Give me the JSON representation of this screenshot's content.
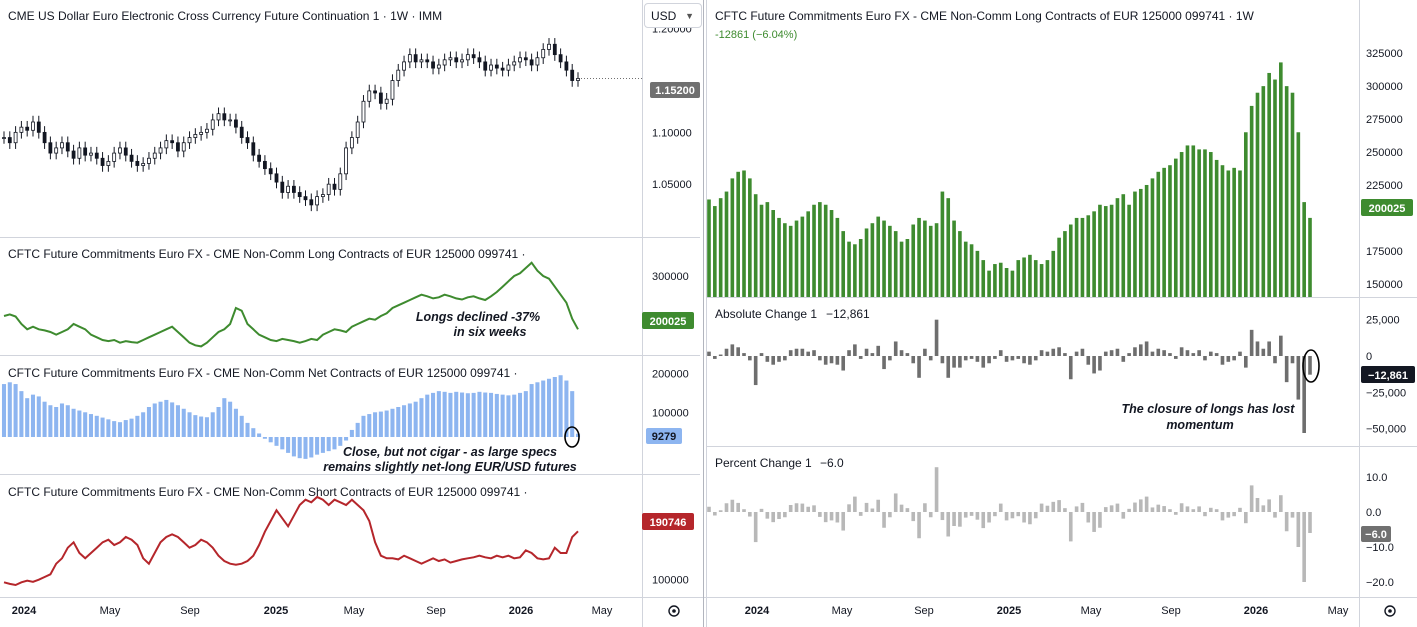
{
  "currency_select": {
    "value": "USD",
    "chevron_icon": "chevron-down-icon"
  },
  "left_panel": {
    "price": {
      "title": "CME US Dollar Euro Electronic Cross Currency Future Continuation 1 · 1W · IMM",
      "last_label": "1.15200",
      "axis_ticks": [
        "1.20000",
        "1.15000",
        "1.10000",
        "1.05000"
      ],
      "badge_color": "#707070"
    },
    "longs": {
      "title": "CFTC Future Commitments Euro FX - CME Non-Comm Long Contracts of EUR 125000 099741 ·",
      "last_label": "200025",
      "axis_ticks": [
        "300000"
      ],
      "color": "#3e8b2f",
      "annotation_line1": "Longs declined -37%",
      "annotation_line2": "in six weeks"
    },
    "net": {
      "title": "CFTC Future Commitments Euro FX - CME Non-Comm Net Contracts of EUR 125000 099741 ·",
      "last_label": "9279",
      "axis_ticks": [
        "200000",
        "100000"
      ],
      "color": "#8db5f0",
      "annotation_line1": "Close, but not cigar - as large specs",
      "annotation_line2": "remains slightly net-long EUR/USD futures"
    },
    "shorts": {
      "title": "CFTC Future Commitments Euro FX - CME Non-Comm Short Contracts of EUR 125000 099741 ·",
      "last_label": "190746",
      "axis_ticks": [
        "200000",
        "100000"
      ],
      "color": "#b5262b"
    },
    "time_axis": [
      "2024",
      "May",
      "Sep",
      "2025",
      "May",
      "Sep",
      "2026",
      "May"
    ],
    "settings_icon": "gear-icon"
  },
  "right_panel": {
    "longs": {
      "title": "CFTC Future Commitments Euro FX - CME Non-Comm Long Contracts of EUR 125000 099741 · 1W",
      "change": "-12861 (−6.04%)",
      "last_label": "200025",
      "axis_ticks": [
        "325000",
        "300000",
        "275000",
        "250000",
        "225000",
        "175000",
        "150000"
      ],
      "color": "#3e8b2f"
    },
    "abs_change": {
      "title": "Absolute Change 1",
      "value": "−12,861",
      "last_label": "−12,861",
      "axis_ticks": [
        "25,000",
        "0",
        "−25,000",
        "−50,000"
      ],
      "annotation_line1": "The closure of longs has lost",
      "annotation_line2": "momentum"
    },
    "pct_change": {
      "title": "Percent Change 1",
      "value": "−6.0",
      "last_label": "−6.0",
      "axis_ticks": [
        "10.0",
        "0.0",
        "−10.0",
        "−20.0"
      ]
    },
    "time_axis": [
      "2024",
      "May",
      "Sep",
      "2025",
      "May",
      "Sep",
      "2026",
      "May"
    ],
    "settings_icon": "gear-icon"
  },
  "chart_data": [
    {
      "type": "candlestick",
      "title": "CME US Dollar Euro Electronic Cross Currency Future Continuation 1 · 1W · IMM",
      "period": "2024 – 2026 (weekly)",
      "close": [
        1.095,
        1.09,
        1.1,
        1.105,
        1.102,
        1.11,
        1.1,
        1.09,
        1.08,
        1.085,
        1.09,
        1.082,
        1.075,
        1.085,
        1.078,
        1.08,
        1.075,
        1.068,
        1.072,
        1.08,
        1.085,
        1.078,
        1.072,
        1.068,
        1.07,
        1.075,
        1.08,
        1.085,
        1.092,
        1.09,
        1.082,
        1.09,
        1.095,
        1.098,
        1.1,
        1.103,
        1.112,
        1.118,
        1.112,
        1.112,
        1.105,
        1.095,
        1.09,
        1.078,
        1.072,
        1.065,
        1.06,
        1.052,
        1.042,
        1.048,
        1.042,
        1.038,
        1.035,
        1.03,
        1.038,
        1.04,
        1.05,
        1.045,
        1.06,
        1.085,
        1.095,
        1.11,
        1.13,
        1.14,
        1.138,
        1.128,
        1.132,
        1.15,
        1.16,
        1.168,
        1.175,
        1.168,
        1.17,
        1.168,
        1.162,
        1.165,
        1.17,
        1.172,
        1.168,
        1.17,
        1.175,
        1.172,
        1.168,
        1.16,
        1.165,
        1.162,
        1.16,
        1.165,
        1.168,
        1.172,
        1.17,
        1.165,
        1.172,
        1.18,
        1.185,
        1.175,
        1.168,
        1.16,
        1.15,
        1.152
      ],
      "ylim": [
        1.0,
        1.22
      ]
    },
    {
      "type": "line",
      "title": "CFTC Future Commitments Euro FX - CME Non-Comm Long Contracts of EUR 125000 099741",
      "values": [
        225000,
        228000,
        224000,
        210000,
        200000,
        205000,
        200000,
        198000,
        195000,
        190000,
        195000,
        200000,
        210000,
        205000,
        200000,
        190000,
        185000,
        180000,
        178000,
        180000,
        175000,
        178000,
        176000,
        175000,
        180000,
        185000,
        190000,
        195000,
        200000,
        205000,
        195000,
        185000,
        175000,
        170000,
        168000,
        175000,
        185000,
        195000,
        200000,
        210000,
        240000,
        235000,
        210000,
        200000,
        190000,
        185000,
        180000,
        178000,
        182000,
        180000,
        178000,
        175000,
        178000,
        182000,
        180000,
        190000,
        195000,
        200000,
        198000,
        195000,
        205000,
        210000,
        215000,
        220000,
        218000,
        225000,
        230000,
        240000,
        245000,
        250000,
        255000,
        260000,
        265000,
        262000,
        258000,
        260000,
        265000,
        262000,
        258000,
        256000,
        260000,
        262000,
        258000,
        255000,
        262000,
        270000,
        280000,
        290000,
        300000,
        305000,
        315000,
        325000,
        310000,
        300000,
        295000,
        280000,
        265000,
        250000,
        220000,
        200025
      ]
    },
    {
      "type": "bar",
      "title": "CFTC Future Commitments Euro FX - CME Non-Comm Net Contracts of EUR 125000 099741",
      "values": [
        150000,
        155000,
        150000,
        130000,
        110000,
        120000,
        115000,
        100000,
        90000,
        85000,
        95000,
        90000,
        80000,
        75000,
        70000,
        65000,
        60000,
        55000,
        50000,
        45000,
        42000,
        48000,
        52000,
        60000,
        70000,
        85000,
        95000,
        100000,
        105000,
        98000,
        90000,
        80000,
        70000,
        62000,
        58000,
        56000,
        70000,
        85000,
        110000,
        100000,
        80000,
        60000,
        40000,
        25000,
        10000,
        -5000,
        -15000,
        -25000,
        -35000,
        -45000,
        -55000,
        -60000,
        -62000,
        -58000,
        -50000,
        -45000,
        -40000,
        -35000,
        -25000,
        -10000,
        20000,
        40000,
        60000,
        65000,
        70000,
        72000,
        75000,
        80000,
        85000,
        90000,
        95000,
        100000,
        110000,
        120000,
        125000,
        130000,
        128000,
        125000,
        128000,
        126000,
        124000,
        125000,
        128000,
        126000,
        125000,
        122000,
        120000,
        118000,
        120000,
        125000,
        130000,
        150000,
        155000,
        160000,
        165000,
        170000,
        175000,
        160000,
        130000,
        9279
      ]
    },
    {
      "type": "line",
      "title": "CFTC Future Commitments Euro FX - CME Non-Comm Short Contracts of EUR 125000 099741",
      "values": [
        95000,
        92000,
        90000,
        95000,
        98000,
        96000,
        100000,
        105000,
        110000,
        130000,
        140000,
        160000,
        170000,
        150000,
        140000,
        150000,
        160000,
        170000,
        175000,
        165000,
        170000,
        180000,
        175000,
        165000,
        140000,
        130000,
        150000,
        170000,
        180000,
        185000,
        180000,
        170000,
        160000,
        165000,
        175000,
        170000,
        160000,
        145000,
        135000,
        130000,
        128000,
        130000,
        135000,
        145000,
        165000,
        190000,
        210000,
        230000,
        215000,
        200000,
        220000,
        240000,
        250000,
        245000,
        255000,
        250000,
        240000,
        250000,
        245000,
        240000,
        250000,
        240000,
        230000,
        210000,
        170000,
        145000,
        140000,
        140000,
        138000,
        145000,
        140000,
        135000,
        130000,
        135000,
        140000,
        135000,
        138000,
        132000,
        135000,
        138000,
        140000,
        142000,
        145000,
        142000,
        140000,
        145000,
        142000,
        145000,
        140000,
        142000,
        155000,
        150000,
        140000,
        138000,
        140000,
        160000,
        150000,
        150000,
        180000,
        190746
      ]
    },
    {
      "type": "bar",
      "title": "CFTC Future Commitments Euro FX - CME Non-Comm Long Contracts of EUR 125000 099741 · 1W",
      "values": [
        214000,
        209000,
        215000,
        220000,
        230000,
        235000,
        236000,
        230000,
        218000,
        210000,
        212000,
        206000,
        200000,
        196000,
        194000,
        198000,
        201000,
        205000,
        210000,
        212000,
        210000,
        206000,
        200000,
        190000,
        182000,
        180000,
        184000,
        192000,
        196000,
        201000,
        198000,
        194000,
        190000,
        182000,
        184000,
        195000,
        200000,
        198000,
        194000,
        196000,
        220000,
        215000,
        198000,
        190000,
        182000,
        180000,
        175000,
        168000,
        160000,
        165000,
        166000,
        162000,
        160000,
        168000,
        170000,
        172000,
        168000,
        165000,
        168000,
        175000,
        185000,
        190000,
        195000,
        200000,
        200000,
        202000,
        205000,
        210000,
        209000,
        210000,
        215000,
        218000,
        210000,
        220000,
        222000,
        225000,
        230000,
        235000,
        238000,
        240000,
        245000,
        250000,
        255000,
        255000,
        252000,
        252000,
        250000,
        244000,
        240000,
        236000,
        238000,
        236000,
        265000,
        285000,
        295000,
        300000,
        310000,
        305000,
        318000,
        300000,
        295000,
        265000,
        212000,
        200025
      ],
      "ylim": [
        140000,
        335000
      ]
    },
    {
      "type": "bar",
      "title": "Absolute Change 1",
      "values": [
        3000,
        -2000,
        1000,
        5000,
        8000,
        6000,
        2000,
        -3000,
        -20000,
        2000,
        -4000,
        -6000,
        -4000,
        -3000,
        4000,
        5000,
        5000,
        3000,
        4000,
        -3000,
        -6000,
        -5000,
        -6000,
        -10000,
        4000,
        8000,
        -2000,
        5000,
        2000,
        7000,
        -9000,
        -3000,
        10000,
        4000,
        2000,
        -5000,
        -15000,
        5000,
        -3000,
        25000,
        -5000,
        -15000,
        -8000,
        -8000,
        -3000,
        -2000,
        -4000,
        -8000,
        -5000,
        -2000,
        4000,
        -4000,
        -3000,
        -2000,
        -5000,
        -6000,
        -3000,
        4000,
        3000,
        5000,
        6000,
        2000,
        -16000,
        3000,
        5000,
        -6000,
        -12000,
        -10000,
        3000,
        4000,
        5000,
        -4000,
        2000,
        6000,
        8000,
        10000,
        3000,
        5000,
        4000,
        2000,
        -2000,
        6000,
        4000,
        2000,
        4000,
        -3000,
        3000,
        2000,
        -6000,
        -4000,
        -3000,
        3000,
        -8000,
        18000,
        10000,
        5000,
        10000,
        -5000,
        14000,
        -18000,
        -5000,
        -30000,
        -53000,
        -12861
      ],
      "ylim": [
        -60000,
        30000
      ]
    },
    {
      "type": "bar",
      "title": "Percent Change 1",
      "values": [
        1.5,
        -1.0,
        0.5,
        2.5,
        3.5,
        2.6,
        0.8,
        -1.3,
        -8.6,
        0.9,
        -1.9,
        -2.9,
        -2.0,
        -1.5,
        2.0,
        2.5,
        2.4,
        1.5,
        1.9,
        -1.4,
        -2.9,
        -2.4,
        -3.0,
        -5.3,
        2.2,
        4.4,
        -1.1,
        2.6,
        1.0,
        3.5,
        -4.5,
        -1.5,
        5.3,
        2.1,
        1.1,
        -2.6,
        -7.5,
        2.5,
        -1.5,
        12.8,
        -2.3,
        -7.0,
        -4.0,
        -4.2,
        -1.6,
        -1.1,
        -2.2,
        -4.6,
        -3.0,
        -1.2,
        2.4,
        -2.4,
        -1.8,
        -1.2,
        -3.0,
        -3.5,
        -1.8,
        2.4,
        1.8,
        2.9,
        3.4,
        1.1,
        -8.4,
        1.6,
        2.6,
        -3.0,
        -5.7,
        -4.5,
        1.4,
        1.9,
        2.4,
        -1.9,
        0.9,
        2.7,
        3.6,
        4.4,
        1.3,
        2.1,
        1.7,
        0.8,
        -0.8,
        2.5,
        1.6,
        0.8,
        1.6,
        -1.2,
        1.2,
        0.8,
        -2.4,
        -1.6,
        -1.2,
        1.2,
        -3.2,
        7.6,
        4.0,
        1.9,
        3.6,
        -1.6,
        4.8,
        -5.5,
        -1.6,
        -10.0,
        -20.0,
        -6.0
      ],
      "ylim": [
        -22,
        14
      ]
    }
  ]
}
